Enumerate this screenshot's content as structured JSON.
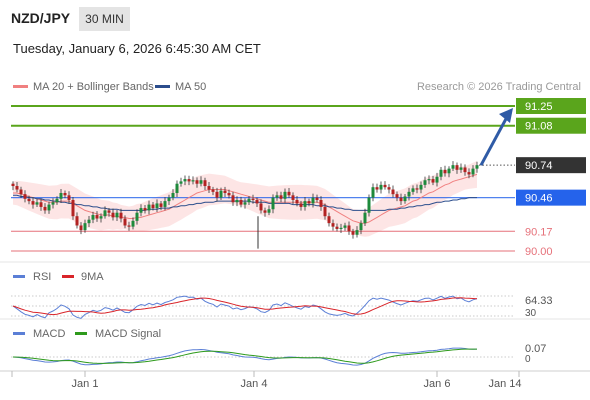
{
  "header": {
    "symbol": "NZD/JPY",
    "interval": "30 MIN",
    "datetime": "Tuesday, January 6, 2026 6:45:30 AM CET"
  },
  "main_panel": {
    "legend": [
      {
        "label": "MA 20 + Bollinger Bands",
        "color": "#f08080"
      },
      {
        "label": "MA 50",
        "color": "#2b4d8c"
      }
    ],
    "credit": "Research © 2026 Trading Central"
  },
  "colors": {
    "resistance": "#5aa51c",
    "current": "#333333",
    "pivot": "#2563eb",
    "support": "#e6717a",
    "candle_up": "#1e8a3c",
    "candle_down": "#b22222",
    "band_fill": "#fde2e2",
    "arrow": "#2f5ba6"
  },
  "chart_data": {
    "type": "candlestick",
    "x_ticks": [
      "Jan 1",
      "Jan 4",
      "Jan 6",
      "Jan 14"
    ],
    "price_scale": [
      90.0,
      91.25
    ],
    "levels": [
      {
        "value": "91.25",
        "kind": "resistance"
      },
      {
        "value": "91.08",
        "kind": "resistance"
      },
      {
        "value": "90.74",
        "kind": "current"
      },
      {
        "value": "90.46",
        "kind": "pivot"
      },
      {
        "value": "90.17",
        "kind": "support"
      },
      {
        "value": "90.00",
        "kind": "support"
      }
    ],
    "close": [
      90.56,
      90.53,
      90.49,
      90.45,
      90.43,
      90.4,
      90.42,
      90.38,
      90.35,
      90.4,
      90.42,
      90.45,
      90.5,
      90.48,
      90.44,
      90.3,
      90.22,
      90.18,
      90.24,
      90.27,
      90.31,
      90.28,
      90.3,
      90.35,
      90.33,
      90.29,
      90.33,
      90.28,
      90.22,
      90.21,
      90.26,
      90.33,
      90.37,
      90.35,
      90.4,
      90.37,
      90.41,
      90.38,
      90.43,
      90.46,
      90.5,
      90.58,
      90.6,
      90.62,
      90.6,
      90.61,
      90.58,
      90.61,
      90.56,
      90.53,
      90.51,
      90.46,
      90.52,
      90.5,
      90.48,
      90.42,
      90.44,
      90.4,
      90.42,
      90.45,
      90.44,
      90.41,
      90.35,
      90.33,
      90.36,
      90.46,
      90.48,
      90.45,
      90.51,
      90.48,
      90.44,
      90.41,
      90.38,
      90.43,
      90.41,
      90.46,
      90.44,
      90.38,
      90.3,
      90.24,
      90.21,
      90.19,
      90.2,
      90.22,
      90.17,
      90.14,
      90.18,
      90.24,
      90.33,
      90.46,
      90.55,
      90.53,
      90.57,
      90.55,
      90.53,
      90.49,
      90.46,
      90.43,
      90.47,
      90.51,
      90.54,
      90.53,
      90.57,
      90.61,
      90.62,
      90.59,
      90.64,
      90.7,
      90.67,
      90.71,
      90.74,
      90.7,
      90.72,
      90.68,
      90.66,
      90.71,
      90.74
    ],
    "ma20": [
      90.5,
      90.5,
      90.49,
      90.48,
      90.47,
      90.46,
      90.45,
      90.44,
      90.43,
      90.42,
      90.42,
      90.42,
      90.43,
      90.43,
      90.43,
      90.41,
      90.39,
      90.37,
      90.35,
      90.34,
      90.33,
      90.32,
      90.31,
      90.31,
      90.31,
      90.3,
      90.3,
      90.29,
      90.29,
      90.28,
      90.28,
      90.29,
      90.29,
      90.3,
      90.31,
      90.32,
      90.33,
      90.34,
      90.35,
      90.36,
      90.38,
      90.4,
      90.42,
      90.44,
      90.46,
      90.48,
      90.5,
      90.51,
      90.52,
      90.53,
      90.53,
      90.53,
      90.53,
      90.53,
      90.52,
      90.51,
      90.5,
      90.49,
      90.48,
      90.47,
      90.46,
      90.45,
      90.44,
      90.43,
      90.42,
      90.42,
      90.42,
      90.42,
      90.42,
      90.42,
      90.42,
      90.42,
      90.42,
      90.42,
      90.42,
      90.42,
      90.42,
      90.41,
      90.4,
      90.38,
      90.36,
      90.34,
      90.32,
      90.3,
      90.28,
      90.26,
      90.25,
      90.24,
      90.24,
      90.25,
      90.27,
      90.29,
      90.31,
      90.33,
      90.35,
      90.36,
      90.37,
      90.38,
      90.39,
      90.41,
      90.43,
      90.44,
      90.46,
      90.48,
      90.5,
      90.51,
      90.53,
      90.55,
      90.57,
      90.58,
      90.6,
      90.61,
      90.62,
      90.63,
      90.64,
      90.65,
      90.66
    ],
    "ma50": [
      90.48,
      90.48,
      90.47,
      90.47,
      90.46,
      90.46,
      90.45,
      90.45,
      90.44,
      90.44,
      90.43,
      90.43,
      90.42,
      90.42,
      90.41,
      90.41,
      90.4,
      90.4,
      90.39,
      90.39,
      90.38,
      90.38,
      90.37,
      90.37,
      90.36,
      90.36,
      90.36,
      90.35,
      90.35,
      90.35,
      90.35,
      90.35,
      90.35,
      90.35,
      90.36,
      90.36,
      90.36,
      90.37,
      90.37,
      90.37,
      90.38,
      90.38,
      90.39,
      90.39,
      90.4,
      90.4,
      90.41,
      90.41,
      90.42,
      90.42,
      90.42,
      90.43,
      90.43,
      90.43,
      90.43,
      90.43,
      90.43,
      90.43,
      90.43,
      90.43,
      90.42,
      90.42,
      90.42,
      90.42,
      90.41,
      90.41,
      90.41,
      90.41,
      90.41,
      90.41,
      90.4,
      90.4,
      90.4,
      90.4,
      90.4,
      90.4,
      90.39,
      90.39,
      90.39,
      90.38,
      90.38,
      90.37,
      90.37,
      90.36,
      90.36,
      90.35,
      90.35,
      90.35,
      90.35,
      90.35,
      90.35,
      90.35,
      90.35,
      90.35,
      90.36,
      90.36,
      90.36,
      90.37,
      90.37,
      90.38,
      90.38,
      90.39,
      90.39,
      90.4,
      90.4,
      90.41,
      90.42,
      90.42,
      90.43,
      90.43,
      90.44,
      90.44,
      90.45,
      90.45,
      90.46,
      90.46,
      90.46
    ],
    "rsi": {
      "title": "RSI",
      "signal": "9MA",
      "value": "64.33",
      "extra_tick": "30",
      "colors": {
        "rsi": "#5b7fd6",
        "signal": "#d9252a"
      }
    },
    "macd": {
      "title": "MACD",
      "signal": "MACD Signal",
      "value": "0.07",
      "zero": "0",
      "colors": {
        "macd": "#5b7fd6",
        "signal": "#2e9a1c"
      }
    }
  }
}
